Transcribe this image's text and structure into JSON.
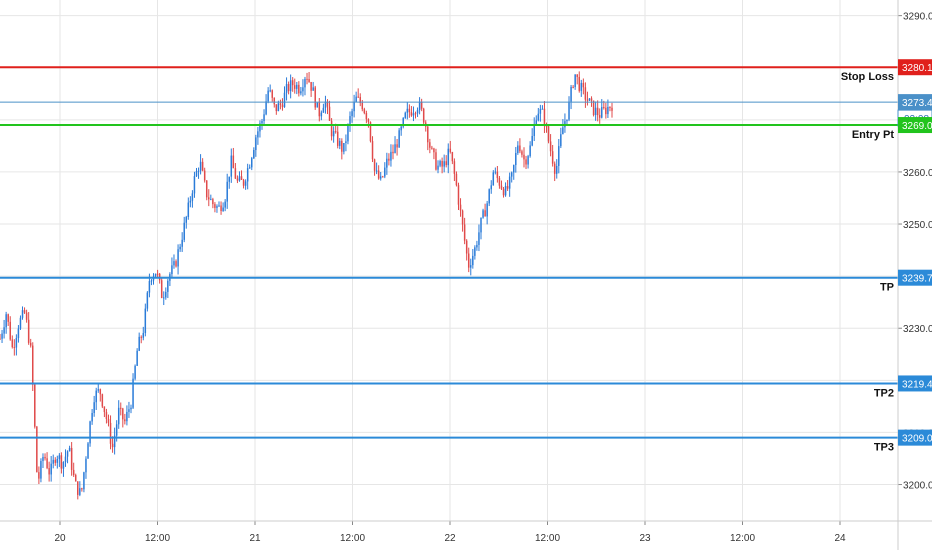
{
  "chart_data": {
    "type": "candlestick",
    "title": "",
    "xlabel": "",
    "ylabel": "",
    "ylim": [
      3193,
      3293
    ],
    "y_ticks": [
      "3290.0",
      "3280.0",
      "3270.0",
      "3260.0",
      "3250.0",
      "3240.0",
      "3230.0",
      "3220.0",
      "3210.0",
      "3200.0"
    ],
    "x_ticks": [
      "20",
      "12:00",
      "21",
      "12:00",
      "22",
      "12:00",
      "23",
      "12:00",
      "24"
    ],
    "grid": true,
    "countdown": "02:08",
    "last_price": "3273.4",
    "levels": [
      {
        "name": "Stop Loss",
        "label": "Stop Loss",
        "value": 3280.1,
        "tag": "3280.1",
        "color": "#e0201c"
      },
      {
        "name": "Current",
        "label": "",
        "value": 3273.4,
        "tag": "3273.4",
        "color": "#4a90c8"
      },
      {
        "name": "Entry Pt",
        "label": "Entry Pt",
        "value": 3269.0,
        "tag": "3269.0",
        "color": "#22c41d"
      },
      {
        "name": "TP",
        "label": "TP",
        "value": 3239.7,
        "tag": "3239.7",
        "color": "#2b8ad8"
      },
      {
        "name": "TP2",
        "label": "TP2",
        "value": 3219.4,
        "tag": "3219.4",
        "color": "#2b8ad8"
      },
      {
        "name": "TP3",
        "label": "TP3",
        "value": 3209.0,
        "tag": "3209.0",
        "color": "#2b8ad8"
      }
    ],
    "colors": {
      "up": "#2a7bd8",
      "down": "#e04a4a",
      "grid": "#e6e6e6",
      "axis": "#cccccc"
    },
    "path": [
      3228,
      3233,
      3226,
      3231,
      3233,
      3225,
      3200,
      3206,
      3202,
      3206,
      3204,
      3207,
      3200,
      3198,
      3208,
      3217,
      3218,
      3213,
      3207,
      3214,
      3212,
      3216,
      3226,
      3230,
      3240,
      3241,
      3236,
      3240,
      3242,
      3247,
      3252,
      3258,
      3262,
      3256,
      3254,
      3253,
      3255,
      3262,
      3258,
      3258,
      3262,
      3267,
      3270,
      3276,
      3272,
      3273,
      3276,
      3277,
      3276,
      3279,
      3276,
      3271,
      3274,
      3268,
      3266,
      3264,
      3270,
      3274,
      3273,
      3270,
      3260,
      3258,
      3262,
      3264,
      3267,
      3271,
      3272,
      3273,
      3270,
      3264,
      3261,
      3261,
      3264,
      3258,
      3250,
      3242,
      3245,
      3250,
      3254,
      3260,
      3258,
      3256,
      3259,
      3266,
      3262,
      3265,
      3272,
      3271,
      3265,
      3260,
      3268,
      3272,
      3279,
      3276,
      3274,
      3272,
      3271,
      3272,
      3273
    ]
  }
}
